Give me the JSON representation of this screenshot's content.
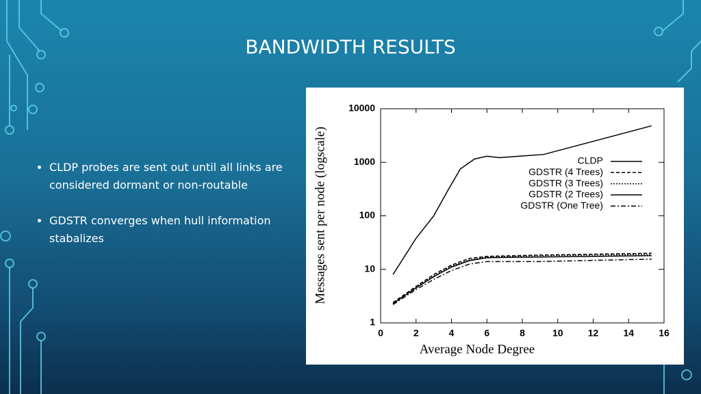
{
  "slide": {
    "title": "BANDWIDTH RESULTS",
    "bullets": [
      "CLDP probes are sent out until all links are considered dormant or non-routable",
      "GDSTR converges when hull information stabalizes"
    ]
  },
  "chart_data": {
    "type": "line",
    "xlabel": "Average Node Degree",
    "ylabel": "Messages sent per node (logscale)",
    "xlim": [
      0,
      16
    ],
    "xticks": [
      0,
      2,
      4,
      6,
      8,
      10,
      12,
      14,
      16
    ],
    "ylim": [
      1,
      10000
    ],
    "yticks": [
      1,
      10,
      100,
      1000,
      10000
    ],
    "ylog": true,
    "legend": "upper right",
    "series": [
      {
        "name": "CLDP",
        "color": "#000000",
        "dash": "solid",
        "x": [
          0.7,
          2,
          3,
          3.8,
          4.5,
          5.3,
          6,
          6.7,
          9.2,
          15.3
        ],
        "values": [
          8,
          38,
          100,
          300,
          750,
          1150,
          1300,
          1220,
          1400,
          4800
        ]
      },
      {
        "name": "GDSTR (4 Trees)",
        "color": "#000000",
        "dash": "dashed",
        "x": [
          0.7,
          2,
          3,
          4,
          5,
          6,
          9,
          15.3
        ],
        "values": [
          2.4,
          4.8,
          8,
          12,
          16,
          17.5,
          18.5,
          20
        ]
      },
      {
        "name": "GDSTR (3 Trees)",
        "color": "#000000",
        "dash": "dotted",
        "x": [
          0.7,
          2,
          3,
          4,
          5,
          6,
          9,
          15.3
        ],
        "values": [
          2.3,
          4.6,
          7.5,
          11.5,
          15,
          17,
          18,
          19
        ]
      },
      {
        "name": "GDSTR (2 Trees)",
        "color": "#000000",
        "dash": "solid",
        "x": [
          0.7,
          2,
          3,
          4,
          5,
          6,
          9,
          15.3
        ],
        "values": [
          2.3,
          4.5,
          7.3,
          11,
          14.5,
          16.5,
          17,
          18
        ]
      },
      {
        "name": "GDSTR (One Tree)",
        "color": "#000000",
        "dash": "dashdot",
        "x": [
          0.7,
          2,
          3,
          4,
          5,
          6,
          9,
          15.3
        ],
        "values": [
          2.2,
          4.2,
          6.5,
          9.5,
          12.5,
          14,
          14,
          15.5
        ]
      }
    ]
  }
}
